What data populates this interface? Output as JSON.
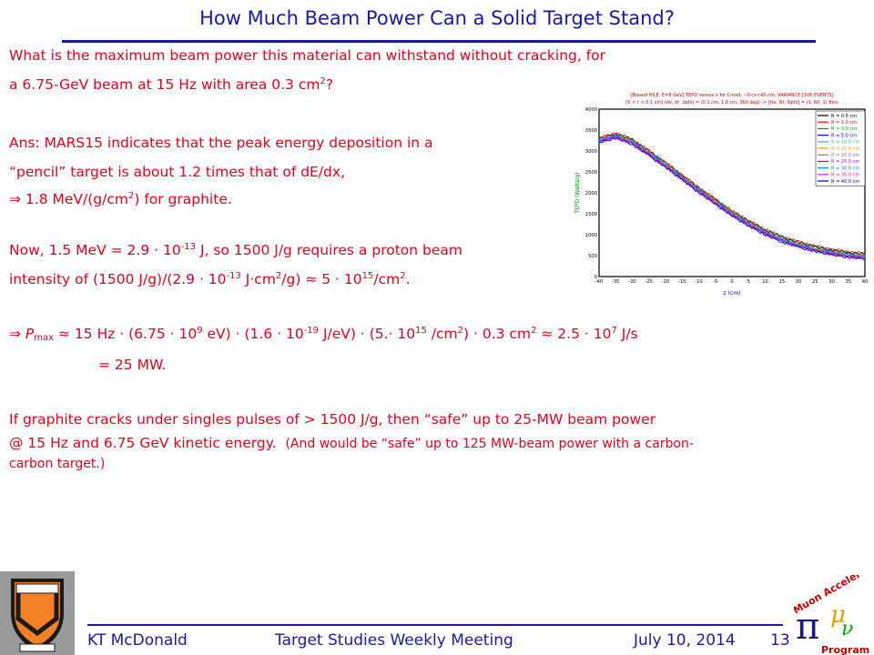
{
  "title": "How Much Beam Power Can a Solid Target Stand?",
  "question": {
    "line1": "What is the maximum beam power this material can withstand without cracking, for",
    "line2_pre": "a 6.75-GeV beam at 15 Hz with area 0.3 cm",
    "line2_sup": "2",
    "line2_post": "?"
  },
  "answer": {
    "line1": "Ans:  MARS15 indicates that the peak energy deposition in a",
    "line2": "“pencil” target is about 1.2 times that of dE/dx,",
    "line3_pre": "⇒ 1.8 MeV/(g/cm",
    "line3_sup": "2",
    "line3_post": ") for graphite."
  },
  "now": {
    "l1a": "Now, 1.5 MeV = 2.9 · 10",
    "l1sup": "-13",
    "l1b": " J, so 1500 J/g requires a proton beam",
    "l2a": "intensity of (1500 J/g)/(2.9 · 10",
    "l2sup1": "-13",
    "l2b": " J·cm",
    "l2sup2": "2",
    "l2c": "/g) ≈ 5 · 10",
    "l2sup3": "15",
    "l2d": "/cm",
    "l2sup4": "2",
    "l2e": "."
  },
  "pmax": {
    "arrow": "⇒ ",
    "p": "P",
    "sub": "max",
    "a": " ≈ 15 Hz · (6.75 · 10",
    "s1": "9",
    "b": " eV) · (1.6 · 10",
    "s2": "-19",
    "c": " J/eV) · (5.· 10",
    "s3": "15",
    "d": " /cm",
    "s4": "2",
    "e": ") · 0.3 cm",
    "s5": "2",
    "f": " ≈ 2.5 · 10",
    "s6": "7",
    "g": " J/s",
    "result": "= 25 MW."
  },
  "conclusion": {
    "line1": "If graphite cracks under singles pulses of > 1500 J/g, then “safe” up to 25-MW beam power",
    "line2": "@ 15 Hz and 6.75 GeV kinetic energy.",
    "line2_small": "(And would be “safe” up to 125 MW-beam power with a carbon-",
    "line3": "carbon target.)"
  },
  "chart_data": {
    "type": "line",
    "title": "[Biased HILE, E=8 GeV] TEPD versus x for Cmxd. ~0<x<40 cm, VARIANCE [10K EVENTS]",
    "subtitle": "[0 < r < 0.1 cm] (dx, dr, dphi) = (0.1 cm, 1.0 cm, 360 deg) -> [Nx, Nr, Nphi] = (1, 60, 1) Bins",
    "xlabel": "z (cm)",
    "ylabel": "TEPD (Watts/g)",
    "xlim": [
      -40,
      40
    ],
    "ylim": [
      0,
      4000
    ],
    "xticks": [
      "-40",
      "-35",
      "-30",
      "-25",
      "-20",
      "-15",
      "-10",
      "-5",
      "0",
      "5",
      "10",
      "15",
      "20",
      "25",
      "30",
      "35",
      "40"
    ],
    "yticks": [
      "0",
      "500",
      "1000",
      "1500",
      "2000",
      "2500",
      "3000",
      "3500",
      "4000"
    ],
    "x": [
      -40,
      -35,
      -30,
      -25,
      -20,
      -15,
      -10,
      -5,
      0,
      5,
      10,
      15,
      20,
      25,
      30,
      35,
      40
    ],
    "series": [
      {
        "name": "R = 0.5 cm",
        "color": "#000000",
        "values": [
          3300,
          3420,
          3270,
          3000,
          2720,
          2420,
          2120,
          1840,
          1560,
          1330,
          1120,
          950,
          820,
          720,
          640,
          580,
          540
        ]
      },
      {
        "name": "R = 1.0 cm",
        "color": "#ff0000",
        "values": [
          3310,
          3430,
          3280,
          3010,
          2730,
          2430,
          2130,
          1850,
          1570,
          1340,
          1130,
          960,
          830,
          730,
          650,
          590,
          550
        ]
      },
      {
        "name": "R = 3.0 cm",
        "color": "#00a000",
        "values": [
          3280,
          3400,
          3250,
          2980,
          2700,
          2400,
          2100,
          1820,
          1540,
          1300,
          1090,
          920,
          790,
          690,
          610,
          550,
          510
        ]
      },
      {
        "name": "R = 5.0 cm",
        "color": "#0000ff",
        "values": [
          3270,
          3380,
          3230,
          2960,
          2680,
          2380,
          2080,
          1800,
          1520,
          1280,
          1070,
          900,
          770,
          670,
          590,
          530,
          490
        ]
      },
      {
        "name": "R = 10.0 cm",
        "color": "#00c8c8",
        "values": [
          3260,
          3370,
          3220,
          2950,
          2670,
          2370,
          2070,
          1790,
          1510,
          1270,
          1060,
          890,
          760,
          660,
          580,
          520,
          480
        ]
      },
      {
        "name": "R = 15.0 cm",
        "color": "#ff9900",
        "values": [
          3250,
          3360,
          3210,
          2940,
          2660,
          2360,
          2060,
          1780,
          1500,
          1260,
          1050,
          880,
          750,
          650,
          570,
          510,
          470
        ]
      },
      {
        "name": "R = 20.0 cm",
        "color": "#808080",
        "values": [
          3240,
          3350,
          3200,
          2930,
          2650,
          2350,
          2050,
          1770,
          1490,
          1250,
          1040,
          870,
          740,
          640,
          560,
          500,
          460
        ]
      },
      {
        "name": "R = 25.0 cm",
        "color": "#a000ff",
        "values": [
          3230,
          3340,
          3190,
          2920,
          2640,
          2340,
          2040,
          1760,
          1480,
          1240,
          1030,
          860,
          730,
          630,
          550,
          490,
          450
        ]
      },
      {
        "name": "R = 30.0 cm",
        "color": "#0080ff",
        "values": [
          3220,
          3330,
          3180,
          2910,
          2630,
          2330,
          2030,
          1750,
          1470,
          1230,
          1020,
          850,
          720,
          620,
          540,
          480,
          440
        ]
      },
      {
        "name": "R = 35.0 cm",
        "color": "#ff00ff",
        "values": [
          3210,
          3320,
          3170,
          2900,
          2620,
          2320,
          2020,
          1740,
          1460,
          1220,
          1010,
          840,
          710,
          610,
          530,
          470,
          430
        ]
      },
      {
        "name": "R = 40.0 cm",
        "color": "#0000a0",
        "values": [
          3200,
          3310,
          3160,
          2890,
          2610,
          2310,
          2010,
          1730,
          1450,
          1210,
          1000,
          830,
          700,
          600,
          520,
          460,
          420
        ]
      }
    ],
    "grid": true,
    "legend": "top-right"
  },
  "footer": {
    "author": "KT McDonald",
    "meeting": "Target Studies Weekly Meeting",
    "date": "July 10, 2014",
    "page": "13"
  },
  "logos": {
    "left": "princeton-shield",
    "right_text": "Muon Accelerator Program",
    "right_top": "Muon Accelerator",
    "right_bottom": "Program",
    "right_pi": "π",
    "right_mu": "μ",
    "right_nu": "ν"
  },
  "colors": {
    "title": "#1a1aa0",
    "body_text": "#e0001b",
    "princeton_orange": "#f58025"
  }
}
